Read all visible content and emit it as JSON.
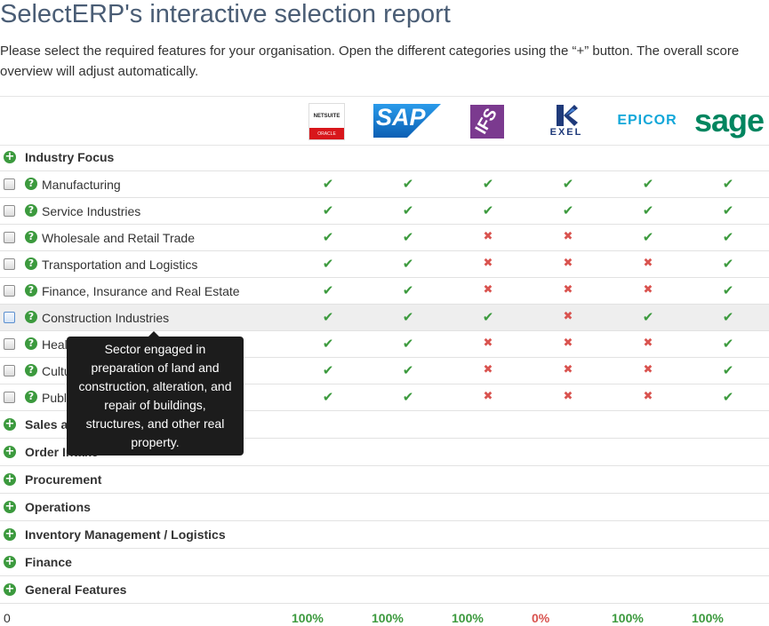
{
  "page": {
    "title": "SelectERP's interactive selection report",
    "intro": "Please select the required features for your organisation. Open the different categories using the “+” button. The overall score overview will adjust automatically."
  },
  "vendors": [
    {
      "name": "NetSuite",
      "logo_top": "NETSUITE",
      "logo_bottom": "ORACLE",
      "icon": "netsuite-logo"
    },
    {
      "name": "SAP",
      "logo_text": "SAP",
      "icon": "sap-logo"
    },
    {
      "name": "IFS",
      "logo_text": "IFS",
      "icon": "ifs-logo"
    },
    {
      "name": "Exel",
      "logo_text": "EXEL",
      "icon": "exel-logo"
    },
    {
      "name": "Epicor",
      "logo_text": "EPICOR",
      "icon": "epicor-logo"
    },
    {
      "name": "Sage",
      "logo_text": "sage",
      "icon": "sage-logo"
    }
  ],
  "industry_focus": {
    "label": "Industry Focus",
    "rows": [
      {
        "label": "Manufacturing",
        "support": [
          true,
          true,
          true,
          true,
          true,
          true
        ]
      },
      {
        "label": "Service Industries",
        "support": [
          true,
          true,
          true,
          true,
          true,
          true
        ]
      },
      {
        "label": "Wholesale and Retail Trade",
        "support": [
          true,
          true,
          false,
          false,
          true,
          true
        ]
      },
      {
        "label": "Transportation and Logistics",
        "support": [
          true,
          true,
          false,
          false,
          false,
          true
        ]
      },
      {
        "label": "Finance, Insurance and Real Estate",
        "support": [
          true,
          true,
          false,
          false,
          false,
          true
        ]
      },
      {
        "label": "Construction Industries",
        "support": [
          true,
          true,
          true,
          false,
          true,
          true
        ],
        "hovered": true
      },
      {
        "label": "Health Care",
        "support": [
          true,
          true,
          false,
          false,
          false,
          true
        ]
      },
      {
        "label": "Culture, Leisure and Tourism",
        "support": [
          true,
          true,
          false,
          false,
          false,
          true
        ]
      },
      {
        "label": "Public Sector",
        "support": [
          true,
          true,
          false,
          false,
          false,
          true
        ]
      }
    ]
  },
  "collapsed_categories": [
    "Sales and Marketing",
    "Order Intake",
    "Procurement",
    "Operations",
    "Inventory Management / Logistics",
    "Finance",
    "General Features"
  ],
  "tooltip": {
    "text": "Sector engaged in preparation of land and construction, alteration, and repair of buildings, structures, and other real property."
  },
  "footer": {
    "count": "0",
    "scores": [
      "100%",
      "100%",
      "100%",
      "0%",
      "100%",
      "100%"
    ]
  },
  "colors": {
    "green": "#3c9a3e",
    "red": "#d9534f",
    "title": "#4a5d75",
    "sap_blue": "#1a73c8",
    "ifs_purple": "#7b3a8f",
    "epicor_cyan": "#12a7d9",
    "sage_green": "#00855f"
  }
}
